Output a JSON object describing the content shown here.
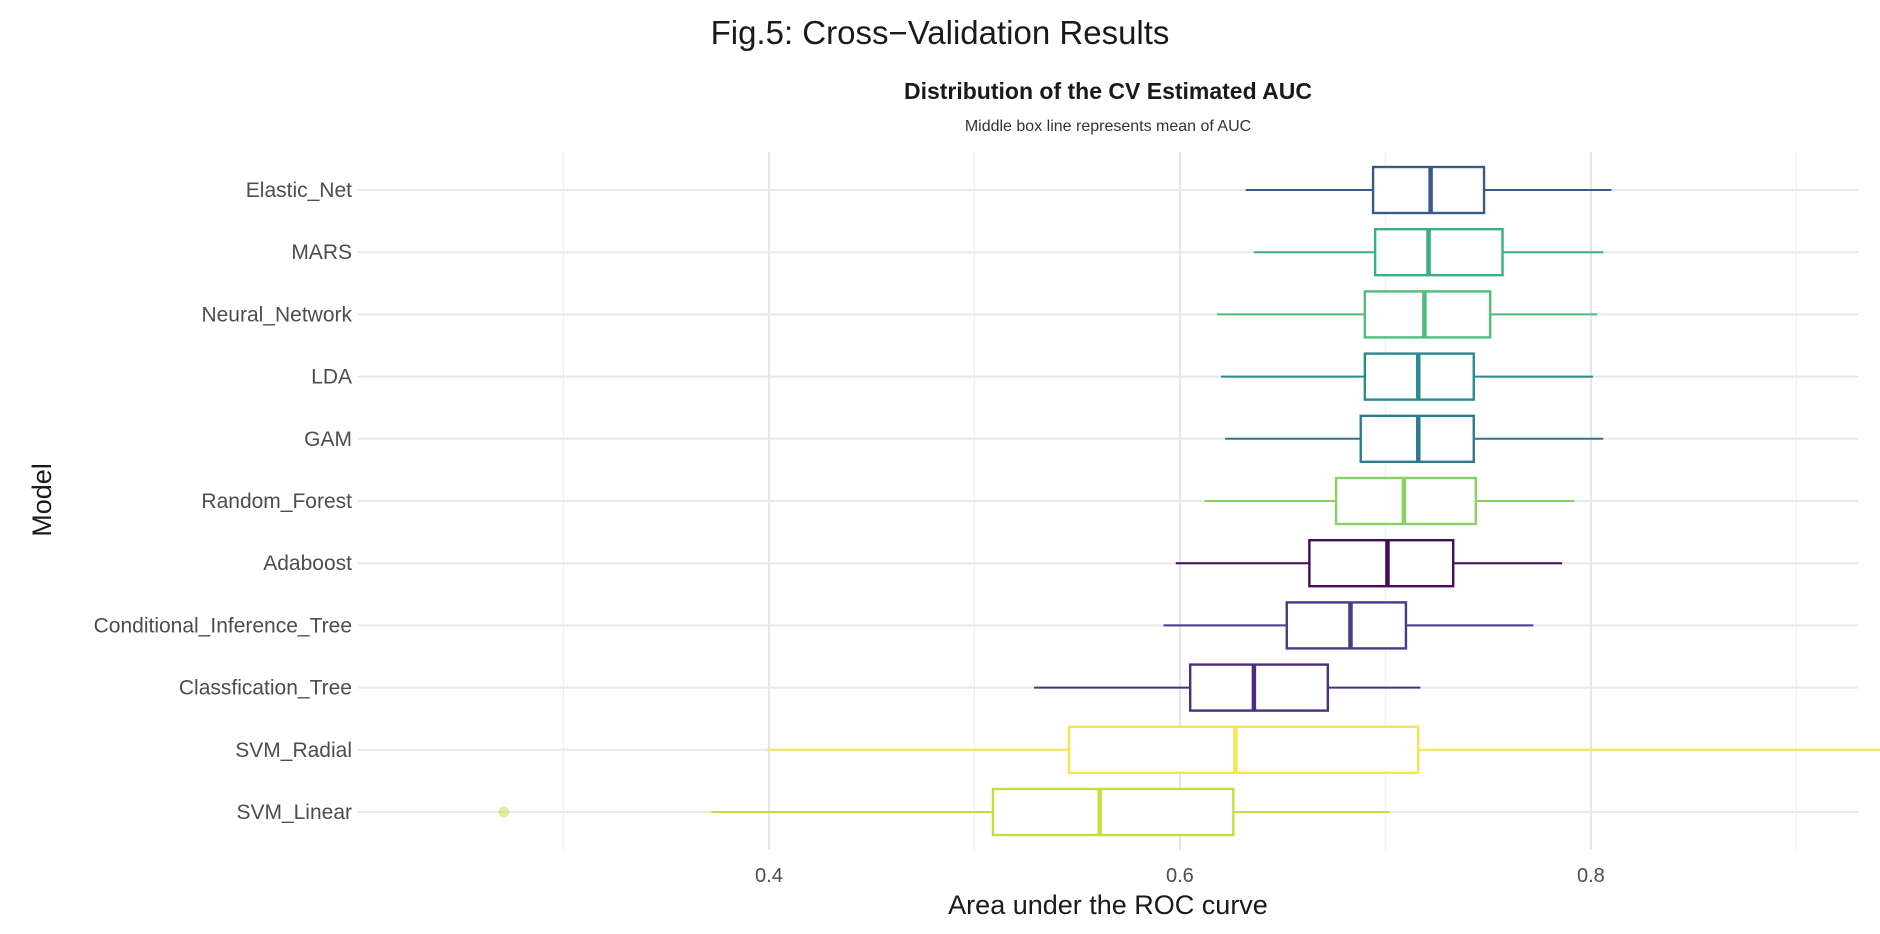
{
  "figure_title": "Fig.5: Cross−Validation Results",
  "chart_data": {
    "type": "boxplot",
    "title": "Distribution of the CV Estimated AUC",
    "subtitle": "Middle box line represents mean of AUC",
    "xlabel": "Area under the ROC curve",
    "ylabel": "Model",
    "xlim": [
      0.2,
      0.93
    ],
    "xticks": [
      0.4,
      0.6,
      0.8
    ],
    "xtick_labels": [
      "0.4",
      "0.6",
      "0.8"
    ],
    "grid": true,
    "legend": "none",
    "models": [
      {
        "name": "Elastic_Net",
        "color": "#3b5a8c",
        "whisker_low": 0.632,
        "q1": 0.694,
        "mid": 0.722,
        "q3": 0.748,
        "whisker_high": 0.81,
        "outliers": []
      },
      {
        "name": "MARS",
        "color": "#35b08a",
        "whisker_low": 0.636,
        "q1": 0.695,
        "mid": 0.721,
        "q3": 0.757,
        "whisker_high": 0.806,
        "outliers": []
      },
      {
        "name": "Neural_Network",
        "color": "#4cbf7a",
        "whisker_low": 0.618,
        "q1": 0.69,
        "mid": 0.719,
        "q3": 0.751,
        "whisker_high": 0.803,
        "outliers": []
      },
      {
        "name": "LDA",
        "color": "#2a8a8e",
        "whisker_low": 0.62,
        "q1": 0.69,
        "mid": 0.716,
        "q3": 0.743,
        "whisker_high": 0.801,
        "outliers": []
      },
      {
        "name": "GAM",
        "color": "#2e7a8f",
        "whisker_low": 0.622,
        "q1": 0.688,
        "mid": 0.716,
        "q3": 0.743,
        "whisker_high": 0.806,
        "outliers": []
      },
      {
        "name": "Random_Forest",
        "color": "#8ad165",
        "whisker_low": 0.612,
        "q1": 0.676,
        "mid": 0.709,
        "q3": 0.744,
        "whisker_high": 0.792,
        "outliers": []
      },
      {
        "name": "Adaboost",
        "color": "#440b57",
        "whisker_low": 0.598,
        "q1": 0.663,
        "mid": 0.701,
        "q3": 0.733,
        "whisker_high": 0.786,
        "outliers": []
      },
      {
        "name": "Conditional_Inference_Tree",
        "color": "#453c86",
        "whisker_low": 0.592,
        "q1": 0.652,
        "mid": 0.683,
        "q3": 0.71,
        "whisker_high": 0.772,
        "outliers": []
      },
      {
        "name": "Classfication_Tree",
        "color": "#4b2e7f",
        "whisker_low": 0.529,
        "q1": 0.605,
        "mid": 0.636,
        "q3": 0.672,
        "whisker_high": 0.717,
        "outliers": []
      },
      {
        "name": "SVM_Radial",
        "color": "#f4e551",
        "whisker_low": 0.399,
        "q1": 0.546,
        "mid": 0.627,
        "q3": 0.716,
        "whisker_high": 0.942,
        "outliers": []
      },
      {
        "name": "SVM_Linear",
        "color": "#c2df3f",
        "whisker_low": 0.372,
        "q1": 0.509,
        "mid": 0.561,
        "q3": 0.626,
        "whisker_high": 0.702,
        "outliers": [
          0.271
        ]
      }
    ]
  }
}
